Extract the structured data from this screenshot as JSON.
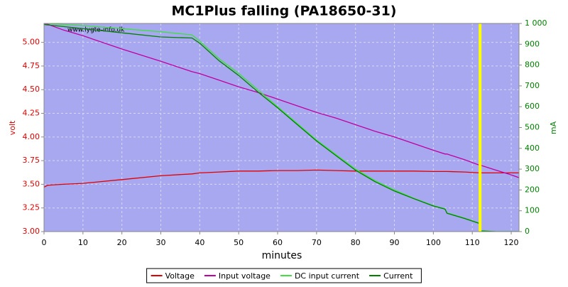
{
  "chart_data": {
    "type": "line",
    "title": "MC1Plus falling (PA18650-31)",
    "xlabel": "minutes",
    "ylabel": "volt",
    "y2label": "mA",
    "watermark": "www.lygte-info.dk",
    "x": [
      0,
      1,
      5,
      10,
      20,
      30,
      38,
      40,
      45,
      50,
      55,
      60,
      65,
      70,
      75,
      80,
      85,
      90,
      95,
      100,
      103,
      103.5,
      108,
      112,
      112.2,
      116,
      120,
      122
    ],
    "series": [
      {
        "name": "Voltage",
        "color": "#e00000",
        "axis": "y",
        "values": [
          3.47,
          3.49,
          3.5,
          3.51,
          3.55,
          3.59,
          3.61,
          3.62,
          3.63,
          3.64,
          3.64,
          3.645,
          3.645,
          3.65,
          3.645,
          3.64,
          3.64,
          3.64,
          3.64,
          3.635,
          3.635,
          3.635,
          3.63,
          3.62,
          3.62,
          3.62,
          3.62,
          3.62
        ]
      },
      {
        "name": "Input voltage",
        "color": "#c000a0",
        "axis": "y",
        "values": [
          5.2,
          5.19,
          5.13,
          5.07,
          4.93,
          4.8,
          4.69,
          4.67,
          4.6,
          4.53,
          4.47,
          4.4,
          4.33,
          4.26,
          4.2,
          4.13,
          4.06,
          4.0,
          3.93,
          3.86,
          3.82,
          3.82,
          3.76,
          3.7,
          3.7,
          3.65,
          3.6,
          3.57
        ]
      },
      {
        "name": "DC input current",
        "color": "#40e040",
        "axis": "y2",
        "values": [
          1000,
          1000,
          995,
          990,
          975,
          960,
          945,
          915,
          830,
          760,
          680,
          600,
          520,
          440,
          370,
          300,
          245,
          200,
          160,
          125,
          110,
          90,
          65,
          40,
          5,
          0,
          0,
          0
        ]
      },
      {
        "name": "Current",
        "color": "#008000",
        "axis": "y2",
        "values": [
          995,
          993,
          985,
          975,
          955,
          935,
          930,
          905,
          820,
          750,
          670,
          595,
          515,
          435,
          365,
          295,
          240,
          195,
          158,
          123,
          108,
          88,
          63,
          38,
          3,
          0,
          0,
          0
        ]
      }
    ],
    "marker_x": 112,
    "marker_color": "#ffff00",
    "xlim": [
      0,
      122
    ],
    "ylim": [
      3.0,
      5.2
    ],
    "y2lim": [
      0,
      1000
    ],
    "xticks": [
      0,
      10,
      20,
      30,
      40,
      50,
      60,
      70,
      80,
      90,
      100,
      110,
      120
    ],
    "yticks": [
      {
        "value": 3,
        "label": "3.00"
      },
      {
        "value": 3.25,
        "label": "3.25"
      },
      {
        "value": 3.5,
        "label": "3.50"
      },
      {
        "value": 3.75,
        "label": "3.75"
      },
      {
        "value": 4,
        "label": "4.00"
      },
      {
        "value": 4.25,
        "label": "4.25"
      },
      {
        "value": 4.5,
        "label": "4.50"
      },
      {
        "value": 4.75,
        "label": "4.75"
      },
      {
        "value": 5,
        "label": "5.00"
      }
    ],
    "y2ticks": [
      0,
      100,
      200,
      300,
      400,
      500,
      600,
      700,
      800,
      900,
      {
        "value": 1000,
        "label": "1 000"
      }
    ],
    "grid": true,
    "plot_color": "#a8a8f0",
    "legend": "bottom"
  }
}
